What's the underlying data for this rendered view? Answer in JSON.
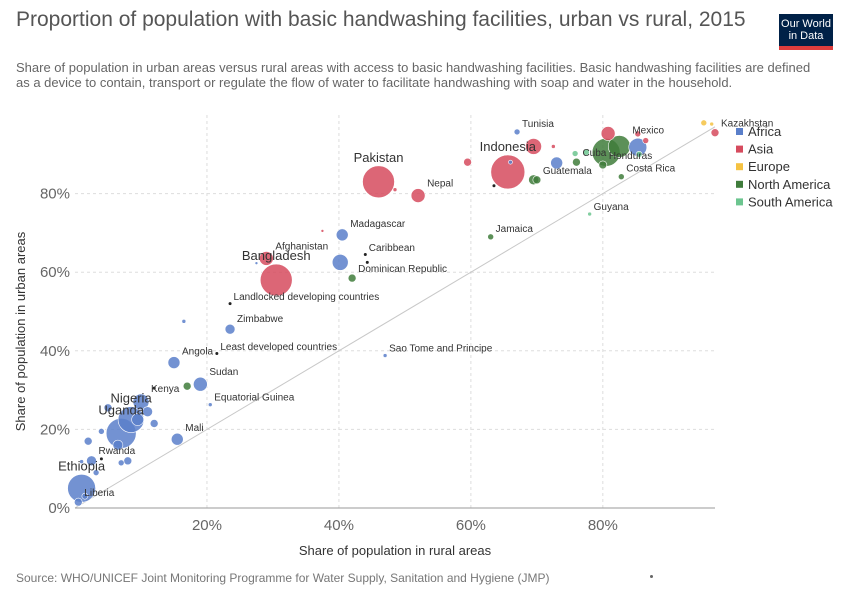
{
  "header": {
    "title": "Proportion of population with basic handwashing facilities, urban vs rural, 2015",
    "subtitle": "Share of population in urban areas versus rural areas with access to basic handwashing facilities. Basic handwashing facilities are defined as a device to contain, transport or regulate the flow of water to facilitate handwashing with soap and water in the household.",
    "logo_line1": "Our World",
    "logo_line2": "in Data"
  },
  "footer": {
    "source": "Source: WHO/UNICEF Joint Monitoring Programme for Water Supply, Sanitation and Hygiene (JMP)"
  },
  "colors": {
    "Africa": "#5a7fca",
    "Asia": "#d64b5e",
    "Europe": "#f5c242",
    "North America": "#3f7c3b",
    "South America": "#6cc58f",
    "Aggregate": "#222222"
  },
  "chart_data": {
    "type": "scatter",
    "title": "Proportion of population with basic handwashing facilities, urban vs rural, 2015",
    "xlabel": "Share of population in rural areas",
    "ylabel": "Share of population in urban areas",
    "xlim": [
      0,
      97
    ],
    "ylim": [
      0,
      100
    ],
    "x_ticks": [
      "20%",
      "40%",
      "60%",
      "80%"
    ],
    "y_ticks": [
      "0%",
      "20%",
      "40%",
      "60%",
      "80%"
    ],
    "grid": true,
    "reference_line": "y = x",
    "legend_position": "top-right",
    "legend": [
      "Africa",
      "Asia",
      "Europe",
      "North America",
      "South America"
    ],
    "points": [
      {
        "label": "Tunisia",
        "region": "Africa",
        "x": 67,
        "y": 95.7,
        "size": 3
      },
      {
        "label": "Indonesia",
        "region": "Asia",
        "x": 65.6,
        "y": 85.5,
        "size": 17
      },
      {
        "label": "Pakistan",
        "region": "Asia",
        "x": 46,
        "y": 83,
        "size": 16
      },
      {
        "label": "Mexico",
        "region": "North America",
        "x": 82.5,
        "y": 92,
        "size": 11
      },
      {
        "label": "Kazakhstan",
        "region": "Asia",
        "x": 97,
        "y": 95.5,
        "size": 4
      },
      {
        "label": "Cuba",
        "region": "North America",
        "x": 76,
        "y": 88,
        "size": 4
      },
      {
        "label": "Honduras",
        "region": "North America",
        "x": 80,
        "y": 87.3,
        "size": 4
      },
      {
        "label": "Guatemala",
        "region": "North America",
        "x": 70,
        "y": 83.5,
        "size": 4
      },
      {
        "label": "Costa Rica",
        "region": "North America",
        "x": 82.8,
        "y": 84.3,
        "size": 3
      },
      {
        "label": "Nepal",
        "region": "Asia",
        "x": 52,
        "y": 79.5,
        "size": 7
      },
      {
        "label": "Guyana",
        "region": "South America",
        "x": 78,
        "y": 74.8,
        "size": 2
      },
      {
        "label": "Madagascar",
        "region": "Africa",
        "x": 40.5,
        "y": 69.5,
        "size": 6
      },
      {
        "label": "Jamaica",
        "region": "North America",
        "x": 63,
        "y": 69,
        "size": 3
      },
      {
        "label": "Afghanistan",
        "region": "Asia",
        "x": 29,
        "y": 63.5,
        "size": 7
      },
      {
        "label": "Bangladesh",
        "region": "Asia",
        "x": 30.5,
        "y": 58,
        "size": 16
      },
      {
        "label": "Caribbean",
        "region": "Aggregate",
        "x": 44,
        "y": 64.5,
        "size": 1.5
      },
      {
        "label": "Dominican Republic",
        "region": "North America",
        "x": 42,
        "y": 58.5,
        "size": 4
      },
      {
        "label": "Landlocked developing countries",
        "region": "Aggregate",
        "x": 23.5,
        "y": 52,
        "size": 1.5
      },
      {
        "label": "Zimbabwe",
        "region": "Africa",
        "x": 23.5,
        "y": 45.5,
        "size": 5
      },
      {
        "label": "Least developed countries",
        "region": "Aggregate",
        "x": 21.5,
        "y": 39.3,
        "size": 1.5
      },
      {
        "label": "Sao Tome and Principe",
        "region": "Africa",
        "x": 47,
        "y": 38.8,
        "size": 2
      },
      {
        "label": "Angola",
        "region": "Africa",
        "x": 15,
        "y": 37,
        "size": 6
      },
      {
        "label": "Sudan",
        "region": "Africa",
        "x": 19,
        "y": 31.5,
        "size": 7
      },
      {
        "label": "Equatorial Guinea",
        "region": "Africa",
        "x": 20.5,
        "y": 26.3,
        "size": 2
      },
      {
        "label": "Kenya",
        "region": "Africa",
        "x": 10,
        "y": 27,
        "size": 8
      },
      {
        "label": "Nigeria",
        "region": "Africa",
        "x": 8.5,
        "y": 22.5,
        "size": 13
      },
      {
        "label": "Mali",
        "region": "Africa",
        "x": 15.5,
        "y": 17.5,
        "size": 6
      },
      {
        "label": "Uganda",
        "region": "Africa",
        "x": 7,
        "y": 19,
        "size": 15
      },
      {
        "label": "Rwanda",
        "region": "Africa",
        "x": 2.5,
        "y": 12,
        "size": 5
      },
      {
        "label": "Ethiopia",
        "region": "Africa",
        "x": 1,
        "y": 5,
        "size": 14
      },
      {
        "label": "Liberia",
        "region": "Africa",
        "x": 0.5,
        "y": 1.5,
        "size": 4
      },
      {
        "label": "",
        "region": "Asia",
        "x": 80.8,
        "y": 95.3,
        "size": 7
      },
      {
        "label": "",
        "region": "Asia",
        "x": 69.5,
        "y": 92,
        "size": 8
      },
      {
        "label": "",
        "region": "Asia",
        "x": 59.5,
        "y": 88,
        "size": 4
      },
      {
        "label": "",
        "region": "Asia",
        "x": 86.5,
        "y": 93.5,
        "size": 3
      },
      {
        "label": "",
        "region": "Asia",
        "x": 85.3,
        "y": 95.2,
        "size": 3
      },
      {
        "label": "",
        "region": "Asia",
        "x": 72.5,
        "y": 92,
        "size": 2
      },
      {
        "label": "",
        "region": "Asia",
        "x": 48.5,
        "y": 81,
        "size": 2
      },
      {
        "label": "",
        "region": "Asia",
        "x": 37.5,
        "y": 70.5,
        "size": 1.5
      },
      {
        "label": "",
        "region": "Europe",
        "x": 95.3,
        "y": 98,
        "size": 3
      },
      {
        "label": "",
        "region": "Europe",
        "x": 96.5,
        "y": 97.7,
        "size": 2
      },
      {
        "label": "",
        "region": "Africa",
        "x": 85.3,
        "y": 91.8,
        "size": 9
      },
      {
        "label": "",
        "region": "Africa",
        "x": 73,
        "y": 87.8,
        "size": 6
      },
      {
        "label": "",
        "region": "Africa",
        "x": 66,
        "y": 88,
        "size": 2
      },
      {
        "label": "",
        "region": "Africa",
        "x": 40.2,
        "y": 62.5,
        "size": 8
      },
      {
        "label": "",
        "region": "Africa",
        "x": 27.5,
        "y": 62.3,
        "size": 1.5
      },
      {
        "label": "",
        "region": "Africa",
        "x": 16.5,
        "y": 47.5,
        "size": 2
      },
      {
        "label": "",
        "region": "Africa",
        "x": 5,
        "y": 25.5,
        "size": 4
      },
      {
        "label": "",
        "region": "Africa",
        "x": 11,
        "y": 24.5,
        "size": 5
      },
      {
        "label": "",
        "region": "Africa",
        "x": 9.5,
        "y": 22.5,
        "size": 6
      },
      {
        "label": "",
        "region": "Africa",
        "x": 12,
        "y": 21.5,
        "size": 4
      },
      {
        "label": "",
        "region": "Africa",
        "x": 4,
        "y": 19.5,
        "size": 3
      },
      {
        "label": "",
        "region": "Africa",
        "x": 2,
        "y": 17,
        "size": 4
      },
      {
        "label": "",
        "region": "Africa",
        "x": 6.5,
        "y": 16,
        "size": 5
      },
      {
        "label": "",
        "region": "Africa",
        "x": 8,
        "y": 12,
        "size": 4
      },
      {
        "label": "",
        "region": "Africa",
        "x": 7,
        "y": 11.5,
        "size": 3
      },
      {
        "label": "",
        "region": "Africa",
        "x": 1,
        "y": 11.8,
        "size": 2
      },
      {
        "label": "",
        "region": "Africa",
        "x": 3.2,
        "y": 9,
        "size": 3
      },
      {
        "label": "",
        "region": "Africa",
        "x": 1.5,
        "y": 3,
        "size": 3
      },
      {
        "label": "",
        "region": "North America",
        "x": 69.5,
        "y": 83.5,
        "size": 5
      },
      {
        "label": "",
        "region": "North America",
        "x": 80.5,
        "y": 90.5,
        "size": 14
      },
      {
        "label": "",
        "region": "North America",
        "x": 17,
        "y": 31,
        "size": 4
      },
      {
        "label": "",
        "region": "South America",
        "x": 85.5,
        "y": 90,
        "size": 3
      },
      {
        "label": "",
        "region": "South America",
        "x": 75.8,
        "y": 90.2,
        "size": 3
      },
      {
        "label": "",
        "region": "South America",
        "x": 77.5,
        "y": 90.5,
        "size": 3
      },
      {
        "label": "",
        "region": "Aggregate",
        "x": 63.5,
        "y": 82,
        "size": 1.5
      },
      {
        "label": "",
        "region": "Aggregate",
        "x": 12,
        "y": 30.5,
        "size": 1.5
      },
      {
        "label": "",
        "region": "Aggregate",
        "x": 4,
        "y": 12.5,
        "size": 1.5
      },
      {
        "label": "",
        "region": "Aggregate",
        "x": 44.3,
        "y": 62.5,
        "size": 1.5
      }
    ]
  }
}
